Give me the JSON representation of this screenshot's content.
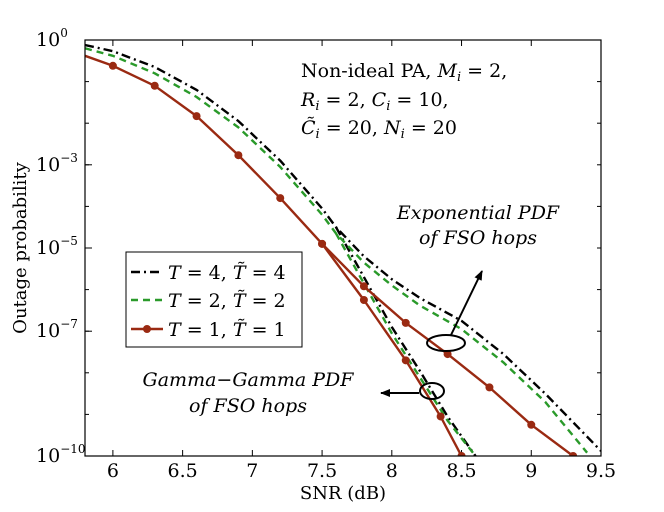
{
  "chart_data": {
    "type": "line",
    "title": "",
    "xlabel": "SNR (dB)",
    "ylabel": "Outage probability",
    "xlim": [
      5.8,
      9.5
    ],
    "ylim_log10": [
      -10,
      0
    ],
    "yscale": "log",
    "x_ticks": [
      {
        "value": 6,
        "label": "6"
      },
      {
        "value": 6.5,
        "label": "6.5"
      },
      {
        "value": 7,
        "label": "7"
      },
      {
        "value": 7.5,
        "label": "7.5"
      },
      {
        "value": 8,
        "label": "8"
      },
      {
        "value": 8.5,
        "label": "8.5"
      },
      {
        "value": 9,
        "label": "9"
      },
      {
        "value": 9.5,
        "label": "9.5"
      }
    ],
    "y_ticks": [
      {
        "exp": 0,
        "base": "10",
        "sup": "0"
      },
      {
        "exp": -3,
        "base": "10",
        "sup": "−3"
      },
      {
        "exp": -5,
        "base": "10",
        "sup": "−5"
      },
      {
        "exp": -7,
        "base": "10",
        "sup": "−7"
      },
      {
        "exp": -10,
        "base": "10",
        "sup": "−10"
      }
    ],
    "annotations": {
      "params": {
        "line1_a": "Non-ideal PA, ",
        "line1_b": "M",
        "line1_c": "i",
        "line1_d": " = 2,",
        "line2_a": "R",
        "line2_b": "i",
        "line2_c": " = 2, ",
        "line2_d": "C",
        "line2_e": "i",
        "line2_f": " = 10,",
        "line3_a": "C̃",
        "line3_b": "i",
        "line3_c": " = 20, ",
        "line3_d": "N",
        "line3_e": "i",
        "line3_f": " = 20"
      },
      "exponential": {
        "line1": "Exponential PDF",
        "line2": "of FSO hops"
      },
      "gamma": {
        "line1": "Gamma−Gamma PDF",
        "line2": "of FSO hops"
      }
    },
    "series": [
      {
        "name": "T = 4, T̃ = 4",
        "legend_a": "T",
        "legend_b": " = 4, ",
        "legend_c": "T̃",
        "legend_d": " = 4",
        "style": "dashdot",
        "color": "#000000",
        "markers": false,
        "curves": [
          {
            "group": "exponential",
            "x": [
              5.8,
              6.0,
              6.3,
              6.6,
              6.9,
              7.2,
              7.5,
              7.6,
              7.8,
              8.0,
              8.2,
              8.5,
              8.8,
              9.1,
              9.5
            ],
            "log10_y": [
              -0.12,
              -0.27,
              -0.65,
              -1.2,
              -1.95,
              -2.9,
              -4.05,
              -4.5,
              -5.2,
              -5.75,
              -6.2,
              -6.75,
              -7.55,
              -8.5,
              -9.88
            ]
          },
          {
            "group": "gamma",
            "x": [
              7.6,
              7.8,
              8.0,
              8.2,
              8.4,
              8.6
            ],
            "log10_y": [
              -4.5,
              -5.7,
              -6.9,
              -7.95,
              -9.05,
              -10.0
            ]
          }
        ]
      },
      {
        "name": "T = 2, T̃ = 2",
        "legend_a": "T",
        "legend_b": " = 2, ",
        "legend_c": "T̃",
        "legend_d": " = 2",
        "style": "dashed",
        "color": "#2a9a2a",
        "markers": false,
        "curves": [
          {
            "group": "exponential",
            "x": [
              5.8,
              6.0,
              6.3,
              6.6,
              6.9,
              7.2,
              7.5,
              7.6,
              7.8,
              8.0,
              8.2,
              8.5,
              8.8,
              9.1,
              9.4
            ],
            "log10_y": [
              -0.2,
              -0.38,
              -0.8,
              -1.37,
              -2.1,
              -3.05,
              -4.2,
              -4.65,
              -5.35,
              -5.9,
              -6.38,
              -6.95,
              -7.75,
              -8.7,
              -9.92
            ]
          },
          {
            "group": "gamma",
            "x": [
              7.6,
              7.8,
              8.0,
              8.2,
              8.4,
              8.6
            ],
            "log10_y": [
              -4.65,
              -5.85,
              -7.05,
              -8.1,
              -9.15,
              -10.0
            ]
          }
        ]
      },
      {
        "name": "T = 1, T̃ = 1",
        "legend_a": "T",
        "legend_b": " = 1, ",
        "legend_c": "T̃",
        "legend_d": " = 1",
        "style": "solid",
        "color": "#9a2a12",
        "markers": true,
        "curves": [
          {
            "group": "exponential",
            "x": [
              5.8,
              6.0,
              6.3,
              6.6,
              6.9,
              7.2,
              7.5,
              7.8,
              8.1,
              8.4,
              8.7,
              9.0,
              9.3
            ],
            "log10_y": [
              -0.38,
              -0.62,
              -1.1,
              -1.83,
              -2.77,
              -3.8,
              -4.9,
              -5.92,
              -6.8,
              -7.55,
              -8.35,
              -9.25,
              -10.0
            ]
          },
          {
            "group": "gamma",
            "x": [
              7.5,
              7.8,
              8.1,
              8.35,
              8.5
            ],
            "log10_y": [
              -4.9,
              -6.25,
              -7.7,
              -9.05,
              -10.0
            ]
          }
        ]
      }
    ]
  }
}
